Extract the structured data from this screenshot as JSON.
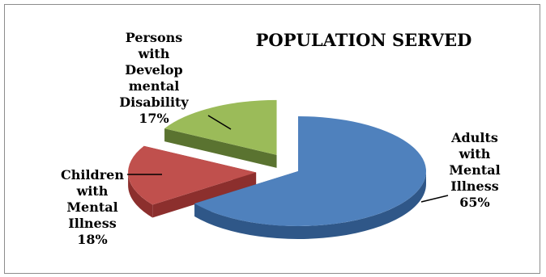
{
  "chart_data": {
    "type": "pie",
    "title": "POPULATION SERVED",
    "is_3d": true,
    "exploded": true,
    "legend": "none",
    "slices": [
      {
        "label_lines": [
          "Adults",
          "with",
          "Mental",
          "Illness"
        ],
        "value_label": "65%",
        "value": 65,
        "color": "#4f81bd",
        "dark_color": "#2f5788"
      },
      {
        "label_lines": [
          "Children",
          "with",
          "Mental",
          "Illness"
        ],
        "value_label": "18%",
        "value": 18,
        "color": "#c0504d",
        "dark_color": "#8c2f2d"
      },
      {
        "label_lines": [
          "Persons",
          "with",
          "Develop",
          "mental",
          "Disability"
        ],
        "value_label": "17%",
        "value": 17,
        "color": "#9bbb59",
        "dark_color": "#5a7330"
      }
    ]
  }
}
